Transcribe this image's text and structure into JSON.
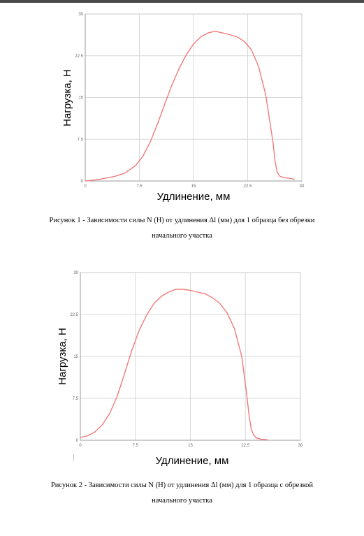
{
  "chart_data": [
    {
      "type": "line",
      "xlabel": "Удлинение, мм",
      "ylabel": "Нагрузка, Н",
      "xlim": [
        0,
        30
      ],
      "ylim": [
        0,
        30
      ],
      "xticks": [
        "0",
        "7.5",
        "15",
        "22.5",
        "30"
      ],
      "yticks": [
        "0",
        "7.5",
        "15",
        "22.5",
        "30"
      ],
      "grid": true,
      "line_color": "#f07a7a",
      "x": [
        0,
        2,
        4,
        5.5,
        7,
        8,
        9,
        10,
        11,
        12,
        13,
        14,
        15,
        16,
        17,
        18,
        19,
        20,
        21,
        22,
        23,
        24,
        25,
        26,
        26.3,
        26.6,
        27,
        27.6,
        28.2,
        29
      ],
      "y": [
        0,
        0.3,
        0.8,
        1.4,
        2.8,
        4.5,
        7,
        10.2,
        13.8,
        17.2,
        20.2,
        22.7,
        24.6,
        25.9,
        26.6,
        26.9,
        26.6,
        26.3,
        25.9,
        25.1,
        23.6,
        20.6,
        15.5,
        7,
        3.5,
        1.5,
        0.8,
        0.6,
        0.5,
        0.3
      ]
    },
    {
      "type": "line",
      "xlabel": "Удлинение, мм",
      "ylabel": "Нагрузка, Н",
      "xlim": [
        0,
        30
      ],
      "ylim": [
        0,
        30
      ],
      "xticks": [
        "0",
        "7.5",
        "15",
        "22.5",
        "30"
      ],
      "yticks": [
        "0",
        "7.5",
        "15",
        "22.5",
        "30"
      ],
      "grid": true,
      "line_color": "#f07a7a",
      "x": [
        0,
        1,
        2,
        3,
        4,
        5,
        6,
        7,
        8,
        9,
        10,
        11,
        12,
        13,
        14,
        15,
        16,
        17,
        18,
        19,
        20,
        21,
        22,
        22.6,
        23,
        23.3,
        23.6,
        24,
        24.6,
        25.5
      ],
      "y": [
        0.5,
        0.8,
        1.5,
        2.8,
        4.8,
        7.8,
        11.8,
        16,
        19.6,
        22.3,
        24.4,
        25.7,
        26.5,
        27,
        27,
        26.8,
        26.5,
        26.2,
        25.5,
        24.5,
        22.8,
        20,
        15,
        9,
        4.5,
        2,
        1,
        0.4,
        0.2,
        0.1
      ]
    }
  ],
  "captions": [
    {
      "line1": "Рисунок 1 - Зависимости силы N (Н) от удлинения Δl (мм) для 1 образца без обрезки",
      "line2": "начального участка"
    },
    {
      "line1": "Рисунок 2 - Зависимости силы N (Н) от удлинения Δl (мм) для 1 образца с обрезкой",
      "line2": "начального участка"
    }
  ],
  "stray_mark": "┆"
}
